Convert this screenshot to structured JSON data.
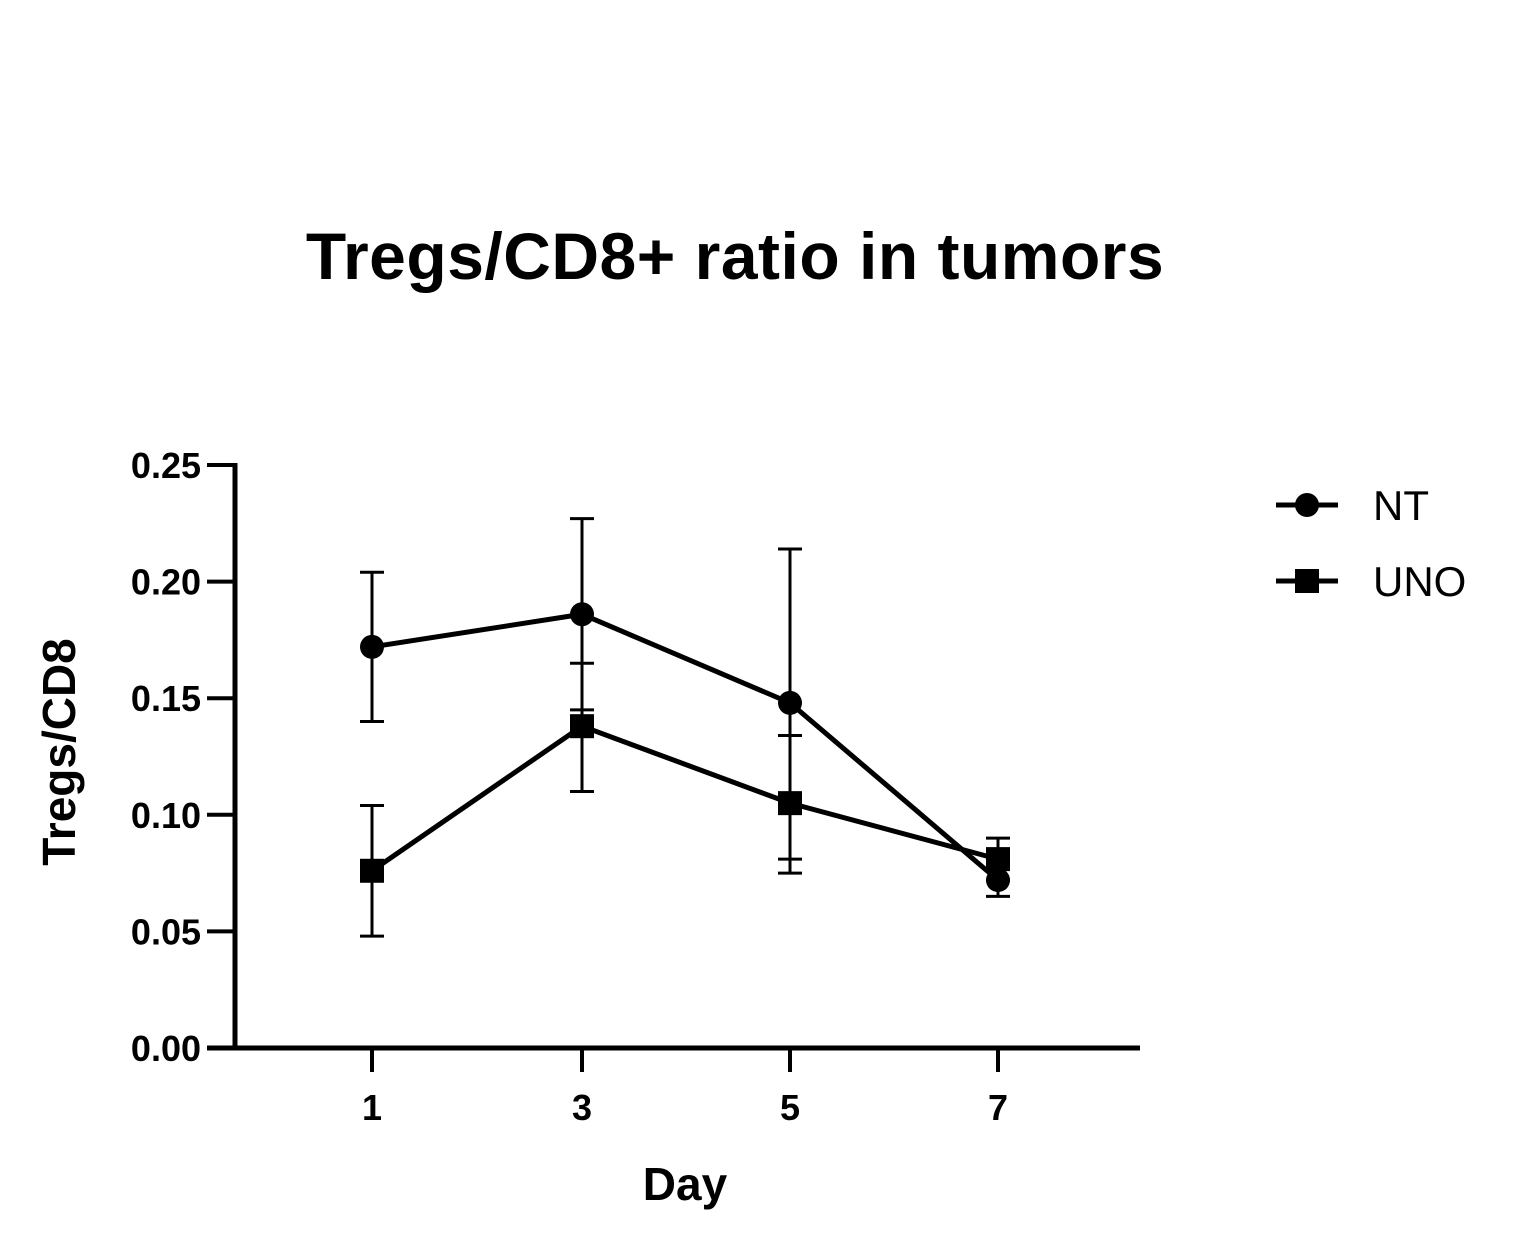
{
  "title": "Tregs/CD8+ ratio in tumors",
  "axes": {
    "xlabel": "Day",
    "ylabel": "Tregs/CD8",
    "yticks": [
      "0.00",
      "0.05",
      "0.10",
      "0.15",
      "0.20",
      "0.25"
    ],
    "xticks": [
      "1",
      "3",
      "5",
      "7"
    ]
  },
  "legend": [
    {
      "label": "NT",
      "marker": "circle"
    },
    {
      "label": "UNO",
      "marker": "square"
    }
  ],
  "colors": {
    "line": "#000000",
    "background": "#ffffff"
  },
  "chart_data": {
    "type": "line",
    "title": "Tregs/CD8+ ratio in tumors",
    "xlabel": "Day",
    "ylabel": "Tregs/CD8",
    "x": [
      1,
      3,
      5,
      7
    ],
    "ylim": [
      0,
      0.25
    ],
    "yticks": [
      0,
      0.05,
      0.1,
      0.15,
      0.2,
      0.25
    ],
    "grid": false,
    "legend_position": "right",
    "series": [
      {
        "name": "NT",
        "marker": "circle",
        "values": [
          0.172,
          0.186,
          0.148,
          0.072
        ],
        "error_upper": [
          0.204,
          0.227,
          0.214,
          0.078
        ],
        "error_lower": [
          0.14,
          0.145,
          0.081,
          0.065
        ]
      },
      {
        "name": "UNO",
        "marker": "square",
        "values": [
          0.076,
          0.138,
          0.105,
          0.081
        ],
        "error_upper": [
          0.104,
          0.165,
          0.134,
          0.09
        ],
        "error_lower": [
          0.048,
          0.11,
          0.075,
          0.072
        ]
      }
    ]
  }
}
